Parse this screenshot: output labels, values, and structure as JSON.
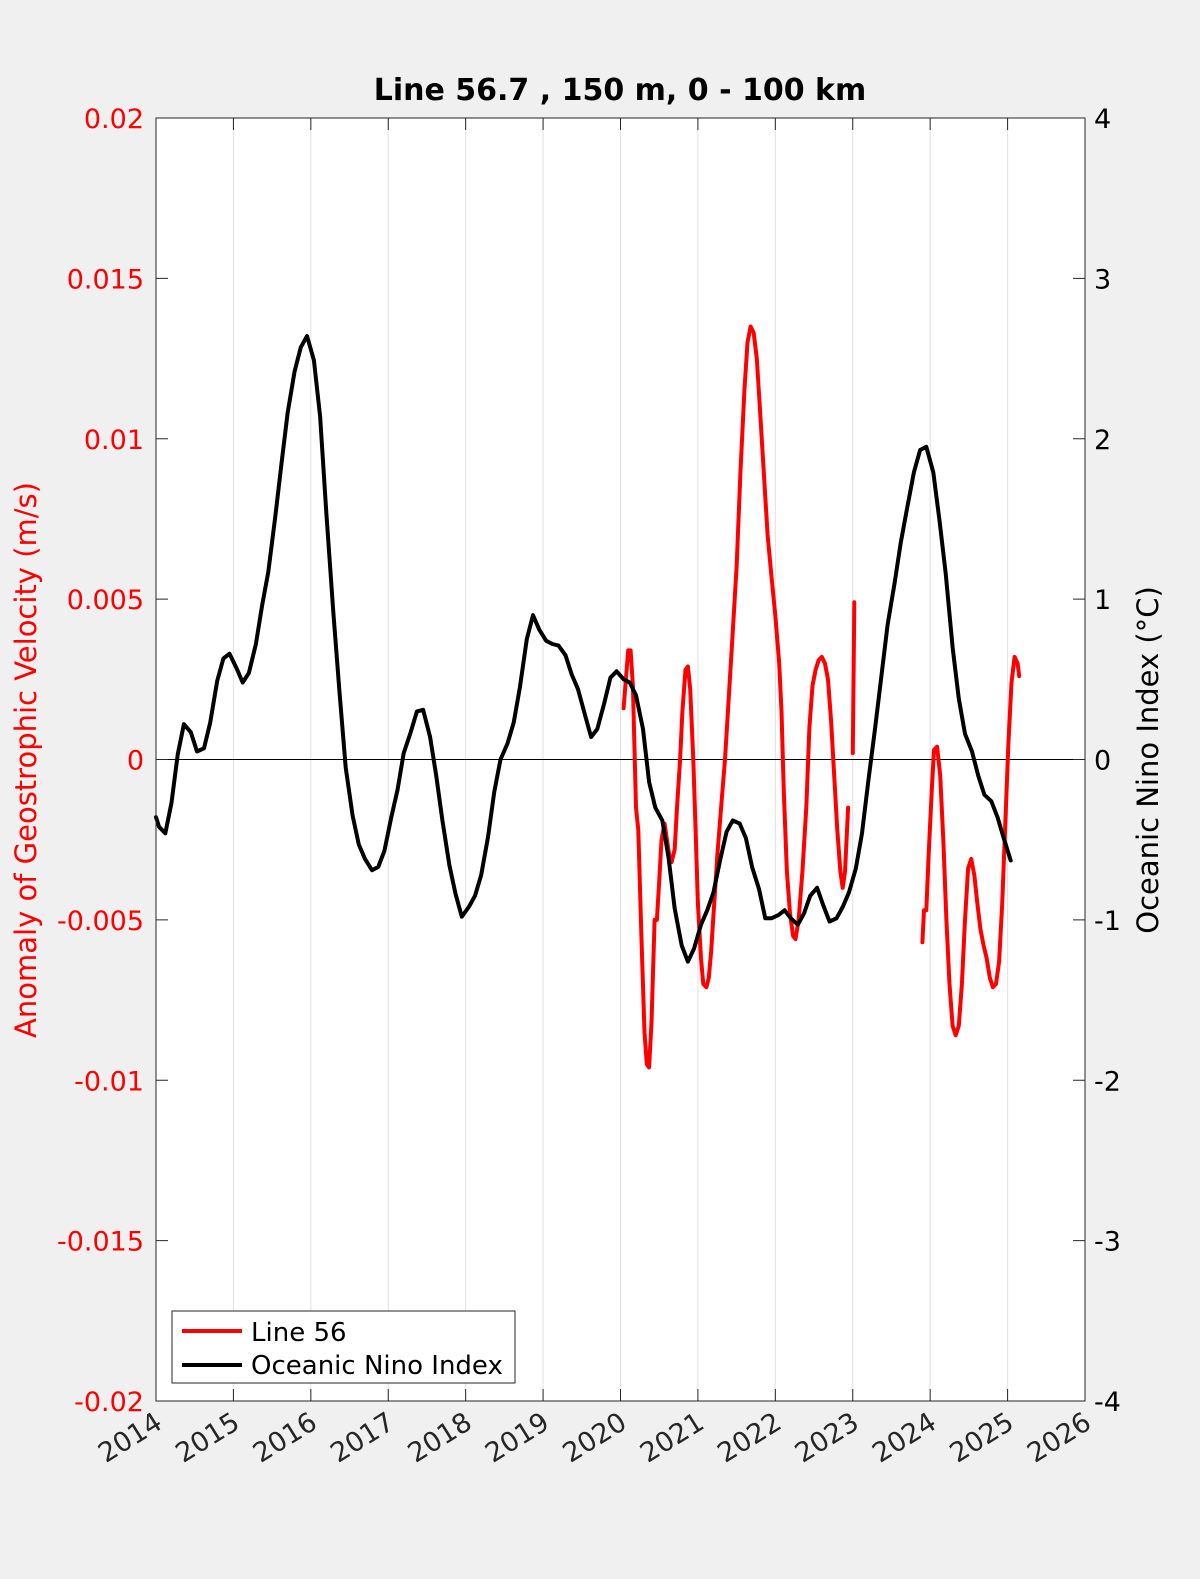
{
  "chart_data": {
    "type": "line",
    "title": "Line 56.7 , 150 m, 0 - 100 km",
    "xlim": [
      2014,
      2026
    ],
    "x_ticks": [
      2014,
      2015,
      2016,
      2017,
      2018,
      2019,
      2020,
      2021,
      2022,
      2023,
      2024,
      2025,
      2026
    ],
    "x_tick_labels": [
      "2014",
      "2015",
      "2016",
      "2017",
      "2018",
      "2019",
      "2020",
      "2021",
      "2022",
      "2023",
      "2024",
      "2025",
      "2026"
    ],
    "x_grid": true,
    "zero_line": true,
    "left_axis": {
      "label": "Anomaly of Geostrophic Velocity (m/s)",
      "lim": [
        -0.02,
        0.02
      ],
      "ticks": [
        0.02,
        0.015,
        0.01,
        0.005,
        0,
        -0.005,
        -0.01,
        -0.015,
        -0.02
      ],
      "tick_labels": [
        "0.02",
        "0.015",
        "0.01",
        "0.005",
        "0",
        "-0.005",
        "-0.01",
        "-0.015",
        "-0.02"
      ],
      "color": "#ff0000"
    },
    "right_axis": {
      "label": "Oceanic Nino Index (°C)",
      "lim": [
        -4,
        4
      ],
      "ticks": [
        4,
        3,
        2,
        1,
        0,
        -1,
        -2,
        -3,
        -4
      ],
      "tick_labels": [
        "4",
        "3",
        "2",
        "1",
        "0",
        "-1",
        "-2",
        "-3",
        "-4"
      ],
      "color": "#000000"
    },
    "legend": {
      "position": "bottom-left"
    },
    "series": [
      {
        "name": "Line 56",
        "axis": "left",
        "color": "#ff0000",
        "segments": [
          [
            [
              2020.04,
              0.0016
            ],
            [
              2020.07,
              0.0025
            ],
            [
              2020.1,
              0.0034
            ],
            [
              2020.13,
              0.0034
            ],
            [
              2020.16,
              0.0023
            ],
            [
              2020.2,
              -0.0015
            ],
            [
              2020.23,
              -0.0022
            ],
            [
              2020.27,
              -0.0055
            ],
            [
              2020.31,
              -0.0085
            ],
            [
              2020.34,
              -0.0095
            ],
            [
              2020.37,
              -0.0096
            ],
            [
              2020.4,
              -0.0082
            ],
            [
              2020.44,
              -0.005
            ],
            [
              2020.47,
              -0.005
            ],
            [
              2020.5,
              -0.0038
            ],
            [
              2020.53,
              -0.0025
            ],
            [
              2020.57,
              -0.002
            ],
            [
              2020.6,
              -0.0025
            ],
            [
              2020.63,
              -0.003
            ],
            [
              2020.66,
              -0.0032
            ],
            [
              2020.7,
              -0.0028
            ],
            [
              2020.73,
              -0.0015
            ],
            [
              2020.77,
              0.0
            ],
            [
              2020.8,
              0.0015
            ],
            [
              2020.84,
              0.0028
            ],
            [
              2020.87,
              0.0029
            ],
            [
              2020.9,
              0.0022
            ],
            [
              2020.94,
              0.0
            ],
            [
              2020.97,
              -0.0022
            ],
            [
              2021.0,
              -0.0045
            ],
            [
              2021.04,
              -0.0062
            ],
            [
              2021.07,
              -0.007
            ],
            [
              2021.11,
              -0.0071
            ],
            [
              2021.14,
              -0.0068
            ],
            [
              2021.17,
              -0.006
            ],
            [
              2021.21,
              -0.0045
            ],
            [
              2021.25,
              -0.003
            ],
            [
              2021.3,
              -0.0015
            ],
            [
              2021.35,
              0.0
            ],
            [
              2021.4,
              0.002
            ],
            [
              2021.45,
              0.004
            ],
            [
              2021.5,
              0.006
            ],
            [
              2021.55,
              0.009
            ],
            [
              2021.6,
              0.0115
            ],
            [
              2021.64,
              0.013
            ],
            [
              2021.68,
              0.0135
            ],
            [
              2021.72,
              0.0133
            ],
            [
              2021.76,
              0.0125
            ],
            [
              2021.8,
              0.011
            ],
            [
              2021.85,
              0.009
            ],
            [
              2021.9,
              0.007
            ],
            [
              2021.95,
              0.0057
            ],
            [
              2022.0,
              0.0045
            ],
            [
              2022.05,
              0.003
            ],
            [
              2022.08,
              0.0015
            ],
            [
              2022.11,
              -0.001
            ],
            [
              2022.15,
              -0.0035
            ],
            [
              2022.19,
              -0.0048
            ],
            [
              2022.23,
              -0.0055
            ],
            [
              2022.26,
              -0.0056
            ],
            [
              2022.3,
              -0.005
            ],
            [
              2022.35,
              -0.0035
            ],
            [
              2022.4,
              -0.0015
            ],
            [
              2022.44,
              0.001
            ],
            [
              2022.48,
              0.0023
            ],
            [
              2022.52,
              0.0028
            ],
            [
              2022.56,
              0.0031
            ],
            [
              2022.6,
              0.0032
            ],
            [
              2022.64,
              0.003
            ],
            [
              2022.68,
              0.0025
            ],
            [
              2022.72,
              0.0012
            ],
            [
              2022.76,
              -0.0005
            ],
            [
              2022.8,
              -0.0022
            ],
            [
              2022.84,
              -0.0035
            ],
            [
              2022.87,
              -0.004
            ],
            [
              2022.9,
              -0.0035
            ],
            [
              2022.94,
              -0.0015
            ]
          ],
          [
            [
              2023.0,
              0.0002
            ],
            [
              2023.02,
              0.0049
            ]
          ],
          [
            [
              2023.9,
              -0.0057
            ],
            [
              2023.92,
              -0.0047
            ],
            [
              2023.95,
              -0.0047
            ],
            [
              2023.98,
              -0.003
            ],
            [
              2024.02,
              -0.001
            ],
            [
              2024.05,
              0.0003
            ],
            [
              2024.09,
              0.0004
            ],
            [
              2024.13,
              -0.0005
            ],
            [
              2024.17,
              -0.0025
            ],
            [
              2024.21,
              -0.005
            ],
            [
              2024.25,
              -0.007
            ],
            [
              2024.29,
              -0.0083
            ],
            [
              2024.33,
              -0.0086
            ],
            [
              2024.37,
              -0.0083
            ],
            [
              2024.41,
              -0.007
            ],
            [
              2024.45,
              -0.005
            ],
            [
              2024.49,
              -0.0034
            ],
            [
              2024.53,
              -0.0031
            ],
            [
              2024.57,
              -0.0036
            ],
            [
              2024.61,
              -0.0045
            ],
            [
              2024.65,
              -0.0053
            ],
            [
              2024.69,
              -0.0058
            ],
            [
              2024.73,
              -0.0062
            ],
            [
              2024.77,
              -0.0068
            ],
            [
              2024.81,
              -0.0071
            ],
            [
              2024.85,
              -0.007
            ],
            [
              2024.89,
              -0.0063
            ],
            [
              2024.93,
              -0.0045
            ],
            [
              2024.97,
              -0.002
            ],
            [
              2025.01,
              0.0005
            ],
            [
              2025.05,
              0.0024
            ],
            [
              2025.09,
              0.0032
            ],
            [
              2025.13,
              0.003
            ],
            [
              2025.15,
              0.0026
            ]
          ]
        ]
      },
      {
        "name": "Oceanic Nino Index",
        "axis": "right",
        "color": "#000000",
        "segments": [
          [
            [
              2014.0,
              -0.36
            ],
            [
              2014.04,
              -0.42
            ],
            [
              2014.12,
              -0.46
            ],
            [
              2014.2,
              -0.27
            ],
            [
              2014.28,
              0.03
            ],
            [
              2014.36,
              0.22
            ],
            [
              2014.45,
              0.17
            ],
            [
              2014.53,
              0.05
            ],
            [
              2014.62,
              0.07
            ],
            [
              2014.7,
              0.23
            ],
            [
              2014.79,
              0.49
            ],
            [
              2014.87,
              0.63
            ],
            [
              2014.95,
              0.66
            ],
            [
              2015.04,
              0.57
            ],
            [
              2015.12,
              0.48
            ],
            [
              2015.2,
              0.54
            ],
            [
              2015.29,
              0.72
            ],
            [
              2015.37,
              0.96
            ],
            [
              2015.45,
              1.17
            ],
            [
              2015.54,
              1.51
            ],
            [
              2015.62,
              1.84
            ],
            [
              2015.7,
              2.16
            ],
            [
              2015.79,
              2.42
            ],
            [
              2015.87,
              2.57
            ],
            [
              2015.95,
              2.64
            ],
            [
              2016.04,
              2.49
            ],
            [
              2016.12,
              2.14
            ],
            [
              2016.2,
              1.54
            ],
            [
              2016.29,
              0.92
            ],
            [
              2016.37,
              0.42
            ],
            [
              2016.45,
              -0.05
            ],
            [
              2016.54,
              -0.35
            ],
            [
              2016.62,
              -0.53
            ],
            [
              2016.7,
              -0.62
            ],
            [
              2016.79,
              -0.69
            ],
            [
              2016.87,
              -0.67
            ],
            [
              2016.95,
              -0.57
            ],
            [
              2017.04,
              -0.36
            ],
            [
              2017.12,
              -0.19
            ],
            [
              2017.2,
              0.04
            ],
            [
              2017.29,
              0.17
            ],
            [
              2017.37,
              0.3
            ],
            [
              2017.45,
              0.31
            ],
            [
              2017.54,
              0.14
            ],
            [
              2017.62,
              -0.1
            ],
            [
              2017.7,
              -0.38
            ],
            [
              2017.79,
              -0.66
            ],
            [
              2017.87,
              -0.84
            ],
            [
              2017.95,
              -0.98
            ],
            [
              2018.04,
              -0.92
            ],
            [
              2018.12,
              -0.85
            ],
            [
              2018.2,
              -0.72
            ],
            [
              2018.29,
              -0.48
            ],
            [
              2018.37,
              -0.2
            ],
            [
              2018.45,
              0.0
            ],
            [
              2018.54,
              0.1
            ],
            [
              2018.62,
              0.23
            ],
            [
              2018.7,
              0.45
            ],
            [
              2018.79,
              0.75
            ],
            [
              2018.87,
              0.9
            ],
            [
              2018.95,
              0.81
            ],
            [
              2019.04,
              0.74
            ],
            [
              2019.12,
              0.72
            ],
            [
              2019.2,
              0.71
            ],
            [
              2019.29,
              0.65
            ],
            [
              2019.37,
              0.53
            ],
            [
              2019.45,
              0.44
            ],
            [
              2019.54,
              0.28
            ],
            [
              2019.62,
              0.14
            ],
            [
              2019.7,
              0.19
            ],
            [
              2019.79,
              0.35
            ],
            [
              2019.87,
              0.51
            ],
            [
              2019.95,
              0.55
            ],
            [
              2020.04,
              0.5
            ],
            [
              2020.12,
              0.48
            ],
            [
              2020.2,
              0.4
            ],
            [
              2020.29,
              0.19
            ],
            [
              2020.37,
              -0.14
            ],
            [
              2020.45,
              -0.3
            ],
            [
              2020.54,
              -0.38
            ],
            [
              2020.62,
              -0.61
            ],
            [
              2020.7,
              -0.93
            ],
            [
              2020.79,
              -1.16
            ],
            [
              2020.87,
              -1.26
            ],
            [
              2020.95,
              -1.18
            ],
            [
              2021.04,
              -1.03
            ],
            [
              2021.12,
              -0.94
            ],
            [
              2021.2,
              -0.83
            ],
            [
              2021.29,
              -0.62
            ],
            [
              2021.37,
              -0.45
            ],
            [
              2021.45,
              -0.38
            ],
            [
              2021.54,
              -0.4
            ],
            [
              2021.62,
              -0.49
            ],
            [
              2021.7,
              -0.67
            ],
            [
              2021.79,
              -0.81
            ],
            [
              2021.87,
              -0.99
            ],
            [
              2021.95,
              -0.99
            ],
            [
              2022.04,
              -0.97
            ],
            [
              2022.12,
              -0.94
            ],
            [
              2022.2,
              -0.99
            ],
            [
              2022.29,
              -1.03
            ],
            [
              2022.37,
              -0.96
            ],
            [
              2022.45,
              -0.85
            ],
            [
              2022.54,
              -0.8
            ],
            [
              2022.62,
              -0.91
            ],
            [
              2022.7,
              -1.01
            ],
            [
              2022.79,
              -0.99
            ],
            [
              2022.87,
              -0.92
            ],
            [
              2022.95,
              -0.83
            ],
            [
              2023.04,
              -0.68
            ],
            [
              2023.12,
              -0.46
            ],
            [
              2023.2,
              -0.14
            ],
            [
              2023.29,
              0.2
            ],
            [
              2023.37,
              0.52
            ],
            [
              2023.45,
              0.84
            ],
            [
              2023.54,
              1.1
            ],
            [
              2023.62,
              1.35
            ],
            [
              2023.7,
              1.56
            ],
            [
              2023.79,
              1.79
            ],
            [
              2023.87,
              1.93
            ],
            [
              2023.95,
              1.95
            ],
            [
              2024.04,
              1.79
            ],
            [
              2024.12,
              1.49
            ],
            [
              2024.2,
              1.16
            ],
            [
              2024.29,
              0.7
            ],
            [
              2024.37,
              0.38
            ],
            [
              2024.45,
              0.16
            ],
            [
              2024.54,
              0.05
            ],
            [
              2024.62,
              -0.1
            ],
            [
              2024.7,
              -0.22
            ],
            [
              2024.79,
              -0.26
            ],
            [
              2024.87,
              -0.36
            ],
            [
              2024.95,
              -0.49
            ],
            [
              2025.04,
              -0.63
            ]
          ]
        ]
      }
    ]
  }
}
